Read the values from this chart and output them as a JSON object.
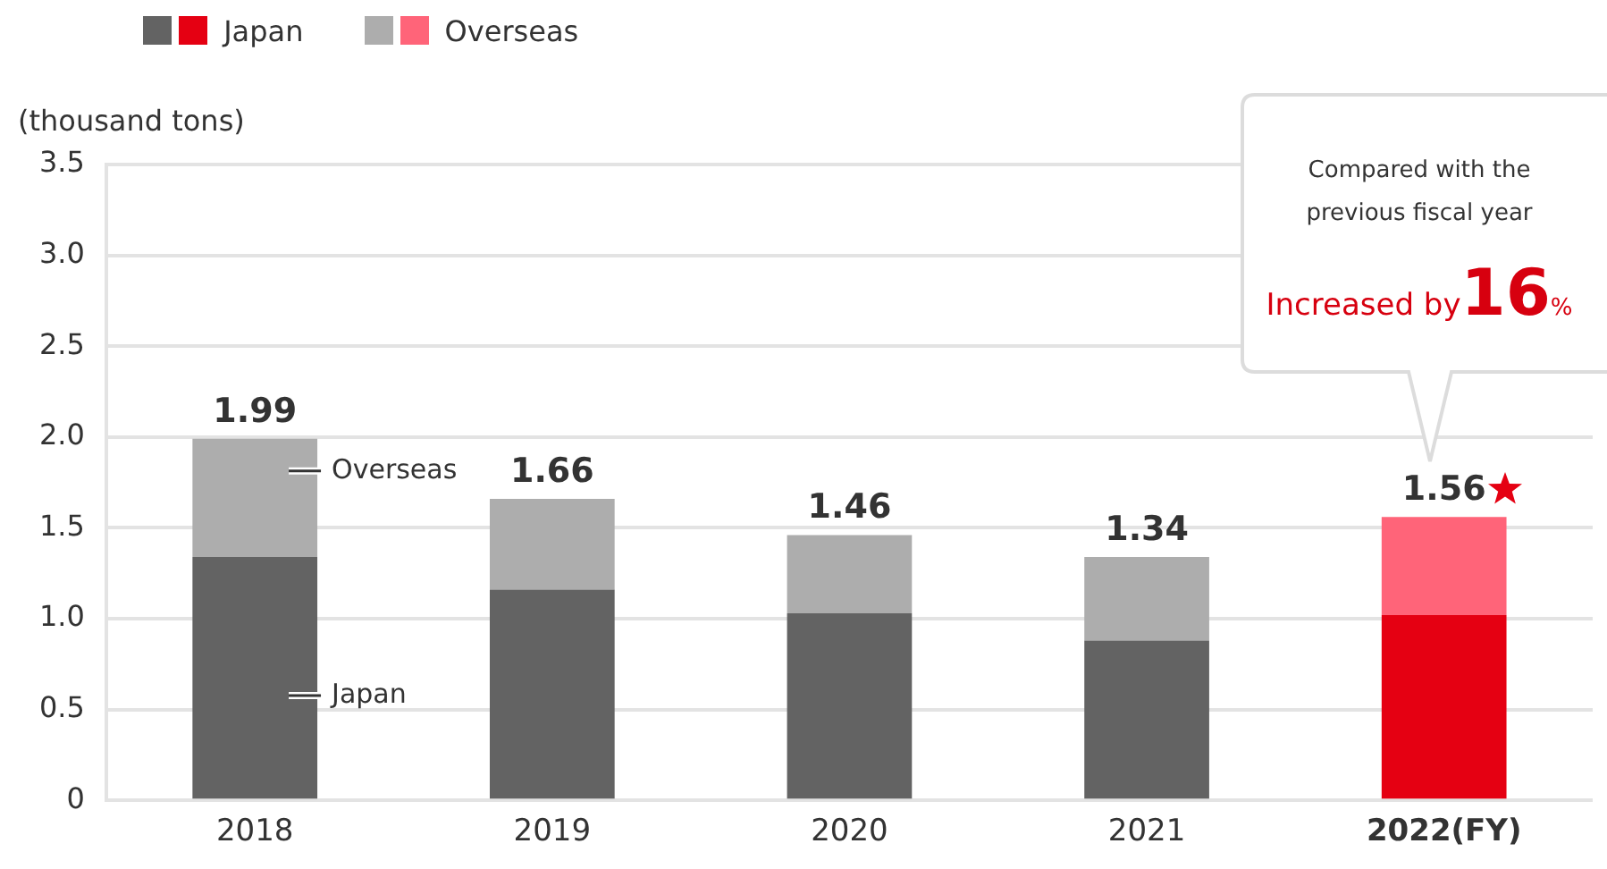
{
  "chart_data": {
    "type": "bar",
    "stacked": true,
    "ylabel": "(thousand tons)",
    "categories": [
      "2018",
      "2019",
      "2020",
      "2021",
      "2022(FY)"
    ],
    "series": [
      {
        "name": "Japan",
        "colors": [
          "#636363",
          "#636363",
          "#636363",
          "#636363",
          "#e50012"
        ],
        "values": [
          1.34,
          1.16,
          1.03,
          0.88,
          1.02
        ]
      },
      {
        "name": "Overseas",
        "colors": [
          "#adadad",
          "#adadad",
          "#adadad",
          "#adadad",
          "#ff6479"
        ],
        "values": [
          0.65,
          0.5,
          0.43,
          0.46,
          0.54
        ]
      }
    ],
    "totals": [
      "1.99",
      "1.66",
      "1.46",
      "1.34",
      "1.56"
    ],
    "ylim": [
      0,
      3.5
    ],
    "yticks": [
      0,
      0.5,
      {
        "value": 1,
        "label": "1.0"
      },
      1.5,
      {
        "value": 2,
        "label": "2.0"
      },
      2.5,
      {
        "value": 3,
        "label": "3.0"
      },
      3.5
    ],
    "grid": "y",
    "legend": "top",
    "annotations": [
      "Compared with the previous fiscal year",
      "Increased by16%"
    ]
  }
}
